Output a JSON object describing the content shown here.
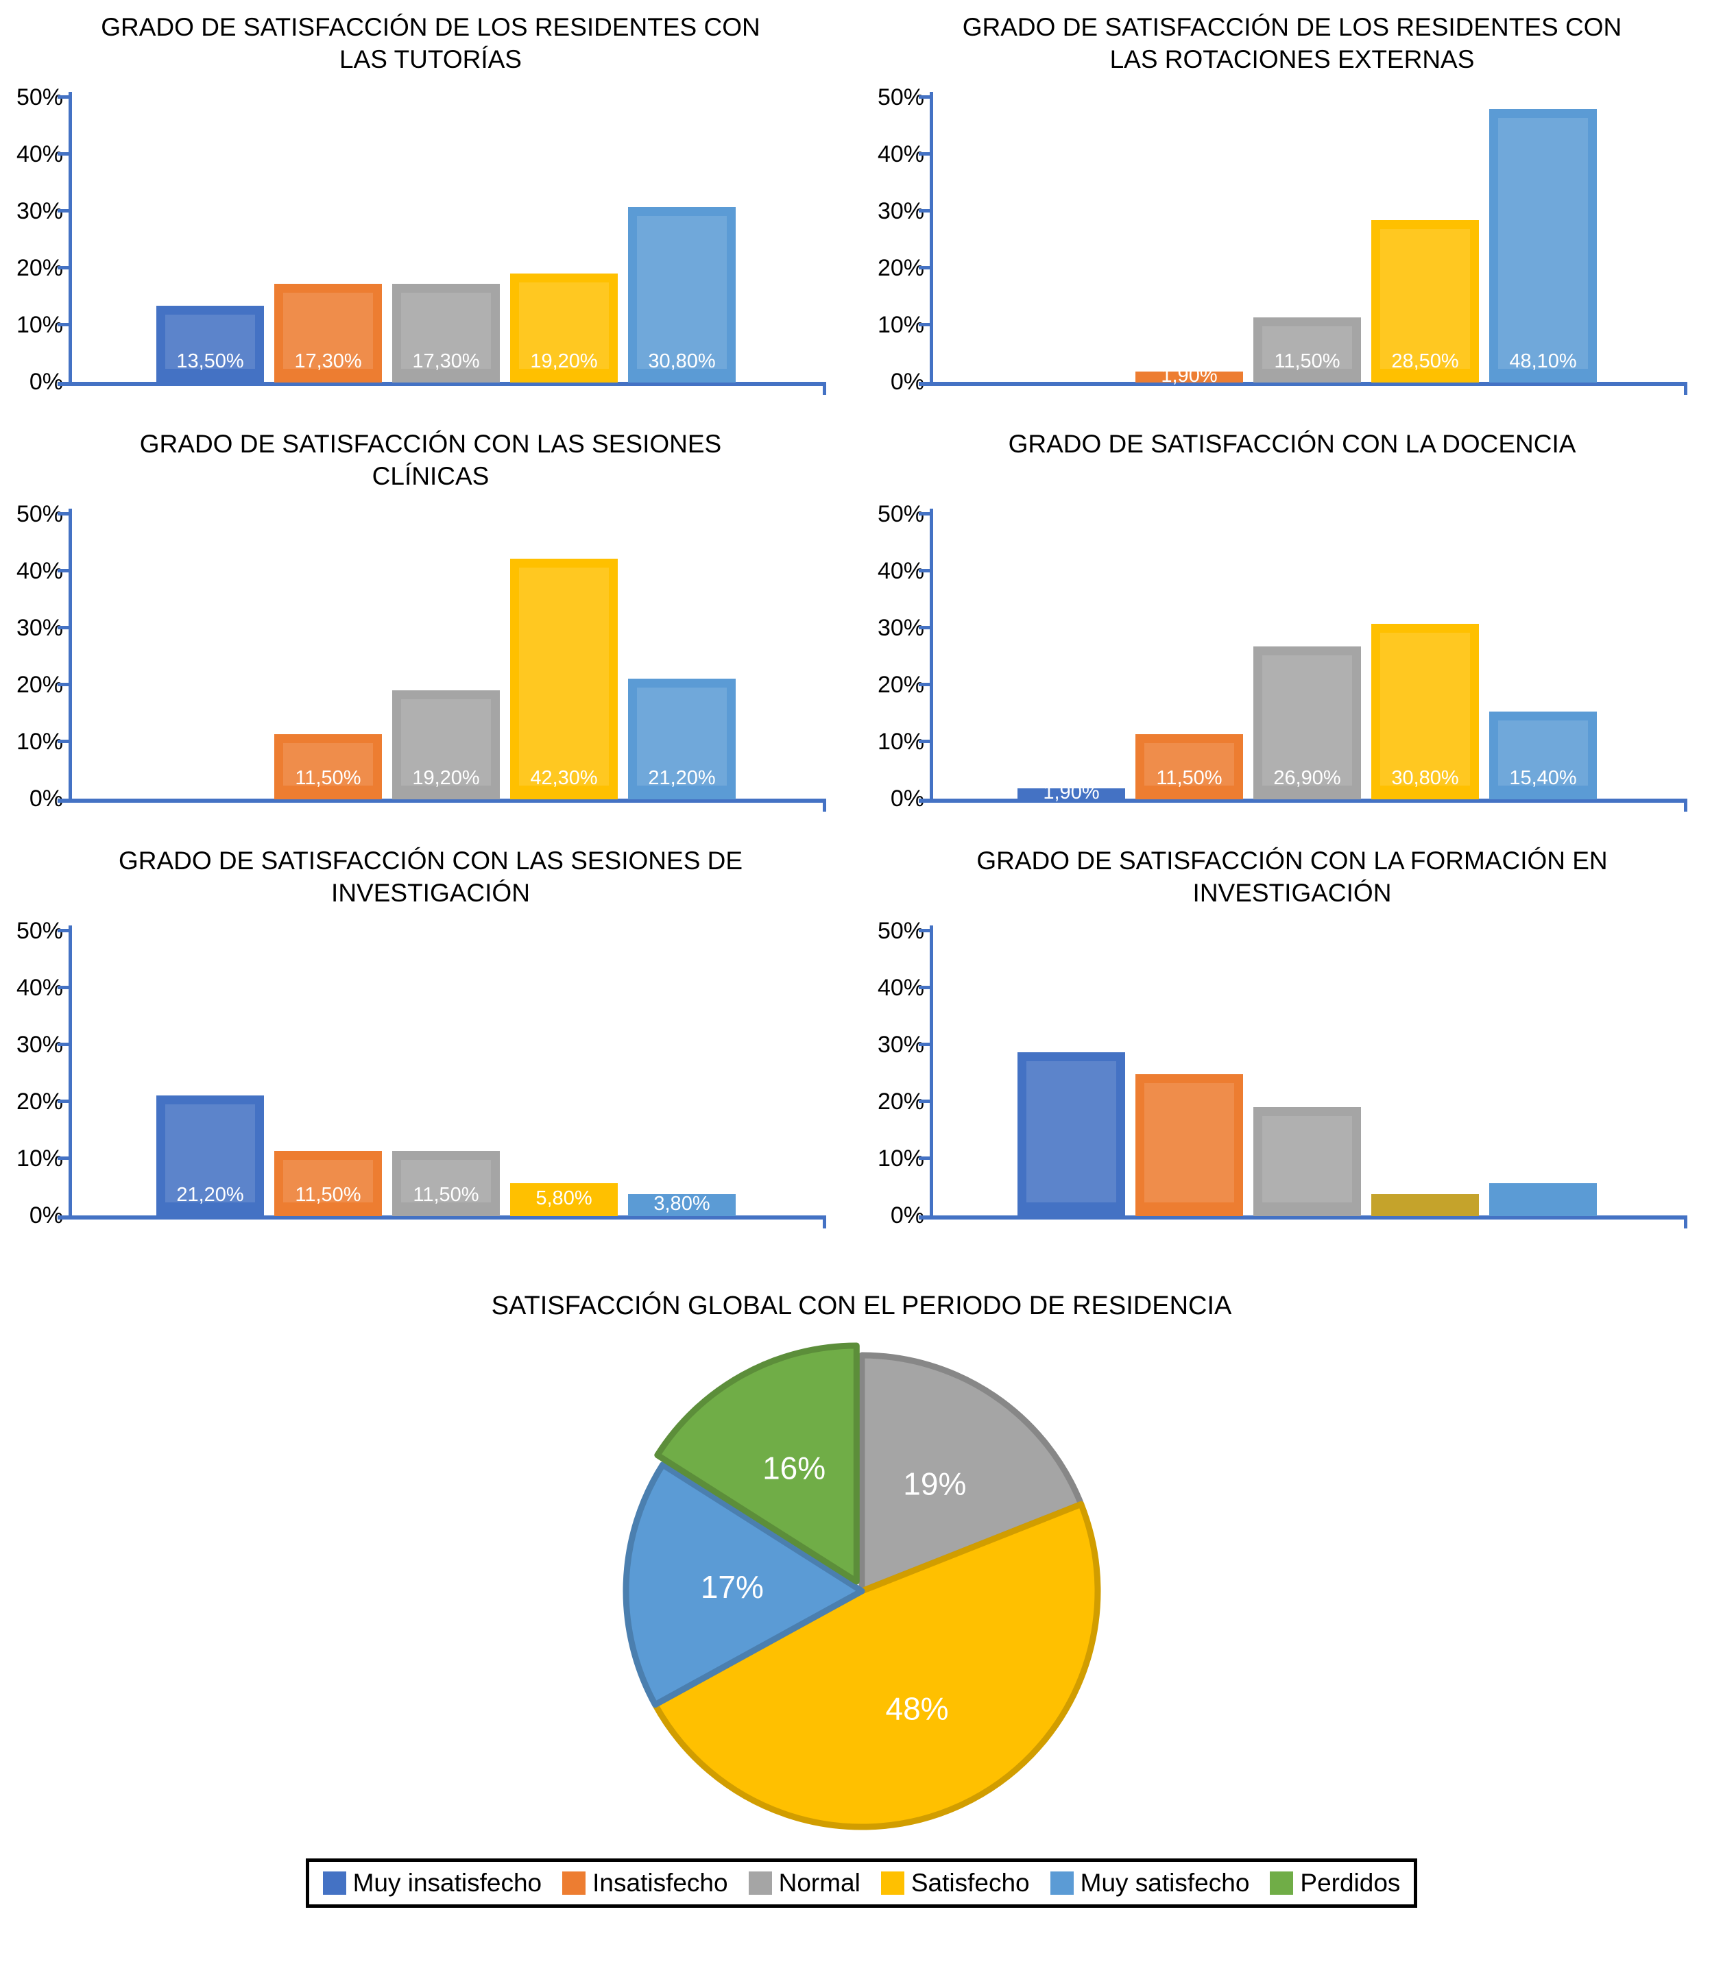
{
  "palette": {
    "muy_insatisfecho": "#4472C4",
    "insatisfecho": "#ED7D31",
    "normal": "#A5A5A5",
    "satisfecho": "#FFC000",
    "muy_satisfecho": "#5B9BD5",
    "perdidos": "#70AD47",
    "axis_line": "#4472C4",
    "bar_label_text": "#FFFFFF",
    "title_text": "#000000",
    "background": "#FFFFFF"
  },
  "y_axis": {
    "tick_labels_top_to_bottom": [
      "50%",
      "40%",
      "30%",
      "20%",
      "10%",
      "0%"
    ],
    "max_percent": 50
  },
  "chart_data": [
    {
      "type": "bar",
      "title": "GRADO DE SATISFACCIÓN DE LOS RESIDENTES CON LAS TUTORÍAS",
      "categories": [
        "Muy insatisfecho",
        "Insatisfecho",
        "Normal",
        "Satisfecho",
        "Muy satisfecho"
      ],
      "values": [
        13.5,
        17.3,
        17.3,
        19.2,
        30.8
      ],
      "bar_labels": [
        "13,50%",
        "17,30%",
        "17,30%",
        "19,20%",
        "30,80%"
      ],
      "ylim": [
        0,
        50
      ]
    },
    {
      "type": "bar",
      "title": "GRADO DE SATISFACCIÓN DE LOS RESIDENTES CON LAS ROTACIONES EXTERNAS",
      "categories": [
        "Muy insatisfecho",
        "Insatisfecho",
        "Normal",
        "Satisfecho",
        "Muy satisfecho"
      ],
      "values": [
        0,
        1.9,
        11.5,
        28.5,
        48.1
      ],
      "bar_labels": [
        null,
        "1,90%",
        "11,50%",
        "28,50%",
        "48,10%"
      ],
      "ylim": [
        0,
        50
      ]
    },
    {
      "type": "bar",
      "title": "GRADO DE SATISFACCIÓN CON LAS SESIONES CLÍNICAS",
      "categories": [
        "Muy insatisfecho",
        "Insatisfecho",
        "Normal",
        "Satisfecho",
        "Muy satisfecho"
      ],
      "values": [
        0,
        11.5,
        19.2,
        42.3,
        21.2
      ],
      "bar_labels": [
        null,
        "11,50%",
        "19,20%",
        "42,30%",
        "21,20%"
      ],
      "ylim": [
        0,
        50
      ]
    },
    {
      "type": "bar",
      "title": "GRADO DE SATISFACCIÓN CON LA DOCENCIA",
      "categories": [
        "Muy insatisfecho",
        "Insatisfecho",
        "Normal",
        "Satisfecho",
        "Muy satisfecho"
      ],
      "values": [
        1.9,
        11.5,
        26.9,
        30.8,
        15.4
      ],
      "bar_labels": [
        "1,90%",
        "11,50%",
        "26,90%",
        "30,80%",
        "15,40%"
      ],
      "ylim": [
        0,
        50
      ]
    },
    {
      "type": "bar",
      "title": "GRADO DE SATISFACCIÓN CON LAS SESIONES DE INVESTIGACIÓN",
      "categories": [
        "Muy insatisfecho",
        "Insatisfecho",
        "Normal",
        "Satisfecho",
        "Muy satisfecho"
      ],
      "values": [
        21.2,
        11.5,
        11.5,
        5.8,
        3.8
      ],
      "bar_labels": [
        "21,20%",
        "11,50%",
        "11,50%",
        "5,80%",
        "3,80%"
      ],
      "ylim": [
        0,
        50
      ]
    },
    {
      "type": "bar",
      "title": "GRADO DE SATISFACCIÓN CON LA FORMACIÓN EN INVESTIGACIÓN",
      "categories": [
        "Muy insatisfecho",
        "Insatisfecho",
        "Normal",
        "Satisfecho",
        "Muy satisfecho"
      ],
      "values": [
        28.8,
        25.0,
        19.2,
        3.8,
        5.8
      ],
      "values_estimated": true,
      "bar_labels": [
        null,
        null,
        null,
        null,
        null
      ],
      "bar_colors": [
        null,
        null,
        null,
        "#C5A32B",
        null
      ],
      "ylim": [
        0,
        50
      ]
    },
    {
      "type": "pie",
      "title": "SATISFACCIÓN GLOBAL CON EL PERIODO DE RESIDENCIA",
      "start_angle_deg": 0,
      "direction": "clockwise",
      "slices": [
        {
          "label": "Normal",
          "value": 19,
          "display": "19%",
          "color": "#A5A5A5",
          "exploded": false
        },
        {
          "label": "Satisfecho",
          "value": 48,
          "display": "48%",
          "color": "#FFC000",
          "exploded": false
        },
        {
          "label": "Muy satisfecho",
          "value": 17,
          "display": "17%",
          "color": "#5B9BD5",
          "exploded": false
        },
        {
          "label": "Perdidos",
          "value": 16,
          "display": "16%",
          "color": "#70AD47",
          "exploded": true
        }
      ]
    }
  ],
  "legend": {
    "items": [
      {
        "label": "Muy insatisfecho",
        "color": "#4472C4"
      },
      {
        "label": "Insatisfecho",
        "color": "#ED7D31"
      },
      {
        "label": "Normal",
        "color": "#A5A5A5"
      },
      {
        "label": "Satisfecho",
        "color": "#FFC000"
      },
      {
        "label": "Muy satisfecho",
        "color": "#5B9BD5"
      },
      {
        "label": "Perdidos",
        "color": "#70AD47"
      }
    ]
  }
}
